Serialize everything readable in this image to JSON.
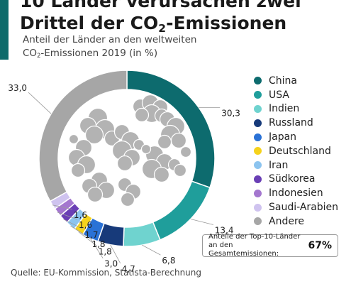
{
  "header": {
    "title_line1": "10 Länder verursachen zwei",
    "title_line2_pre": "Drittel der CO",
    "title_line2_sub": "2",
    "title_line2_post": "-Emissionen",
    "subtitle_line1": "Anteil der Länder an den weltweiten",
    "subtitle_line2_pre": "CO",
    "subtitle_line2_sub": "2",
    "subtitle_line2_post": "-Emissionen 2019 (in %)"
  },
  "chart_data": {
    "type": "pie",
    "variant": "donut",
    "unit": "%",
    "series": [
      {
        "name": "China",
        "value": 30.3,
        "label": "30,3",
        "color": "#0d6b6e"
      },
      {
        "name": "USA",
        "value": 13.4,
        "label": "13,4",
        "color": "#1f9e9b"
      },
      {
        "name": "Indien",
        "value": 6.8,
        "label": "6,8",
        "color": "#6fd3cf"
      },
      {
        "name": "Russland",
        "value": 4.7,
        "label": "4,7",
        "color": "#173a7a"
      },
      {
        "name": "Japan",
        "value": 3.0,
        "label": "3,0",
        "color": "#2a72d6"
      },
      {
        "name": "Deutschland",
        "value": 1.8,
        "label": "1,8",
        "color": "#f5d21c"
      },
      {
        "name": "Iran",
        "value": 1.8,
        "label": "1,8",
        "color": "#8cc4ef"
      },
      {
        "name": "Südkorea",
        "value": 1.7,
        "label": "1,7",
        "color": "#6a3fb5"
      },
      {
        "name": "Indonesien",
        "value": 1.6,
        "label": "1,6",
        "color": "#a477cf"
      },
      {
        "name": "Saudi-Arabien",
        "value": 1.6,
        "label": "1,6",
        "color": "#cfc3ef"
      },
      {
        "name": "Andere",
        "value": 33.0,
        "label": "33,0",
        "color": "#a6a6a6"
      }
    ]
  },
  "summary": {
    "label": "Anteile der Top-10-Länder an den Gesamtemissionen:",
    "value": "67%"
  },
  "footer": {
    "source": "Quelle: EU-Kommission, Statista-Berechnung"
  },
  "decoration": {
    "center_icon": "smoke-cloud-icon",
    "cloud_color": "#b3b3b3"
  }
}
